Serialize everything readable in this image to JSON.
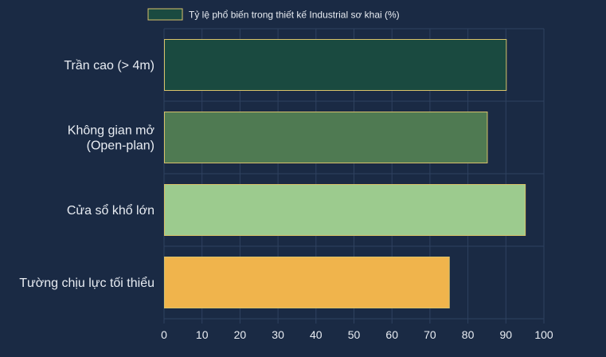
{
  "chart_data": {
    "type": "bar",
    "orientation": "horizontal",
    "categories": [
      [
        "Trần cao (> 4m)"
      ],
      [
        "Không gian mở",
        "(Open-plan)"
      ],
      [
        "Cửa sổ khổ lớn"
      ],
      [
        "Tường chịu lực tối thiểu"
      ]
    ],
    "series": [
      {
        "name": "Tỷ lệ phổ biến trong thiết kế Industrial sơ khai (%)",
        "values": [
          90,
          85,
          95,
          75
        ]
      }
    ],
    "bar_colors": [
      "#1a4a40",
      "#4f7a52",
      "#9ccb8e",
      "#f0b44c"
    ],
    "bar_border_color": "#d8c26a",
    "legend_swatch_color": "#1a4a40",
    "xlim": [
      0,
      100
    ],
    "x_ticks": [
      "0",
      "10",
      "20",
      "30",
      "40",
      "50",
      "60",
      "70",
      "80",
      "90",
      "100"
    ],
    "x_tick_values": [
      0,
      10,
      20,
      30,
      40,
      50,
      60,
      70,
      80,
      90,
      100
    ],
    "grid": true,
    "legend_position": "top",
    "background_color": "#1a2a44",
    "grid_color": "#2f4260"
  }
}
